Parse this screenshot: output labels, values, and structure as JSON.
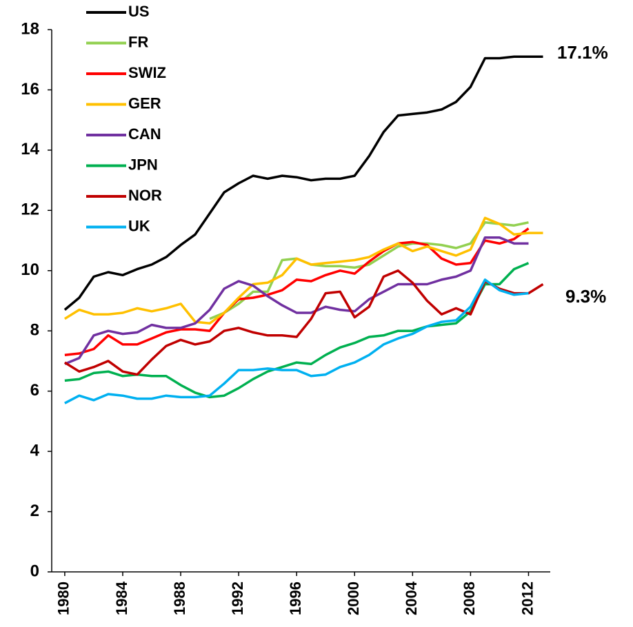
{
  "chart_data": {
    "type": "line",
    "x": [
      1980,
      1981,
      1982,
      1983,
      1984,
      1985,
      1986,
      1987,
      1988,
      1989,
      1990,
      1991,
      1992,
      1993,
      1994,
      1995,
      1996,
      1997,
      1998,
      1999,
      2000,
      2001,
      2002,
      2003,
      2004,
      2005,
      2006,
      2007,
      2008,
      2009,
      2010,
      2011,
      2012,
      2013
    ],
    "xlim": [
      1979.1,
      2013.5
    ],
    "xticks": [
      1980,
      1984,
      1988,
      1992,
      1996,
      2000,
      2004,
      2008,
      2012
    ],
    "ylim": [
      0,
      18
    ],
    "yticks": [
      0,
      2,
      4,
      6,
      8,
      10,
      12,
      14,
      16,
      18
    ],
    "legend": "top-left",
    "series": [
      {
        "name": "US",
        "color": "#000000",
        "values": [
          8.7,
          9.1,
          9.8,
          9.95,
          9.85,
          10.05,
          10.2,
          10.45,
          10.85,
          11.2,
          11.9,
          12.6,
          12.9,
          13.15,
          13.05,
          13.15,
          13.1,
          13.0,
          13.05,
          13.05,
          13.15,
          13.8,
          14.6,
          15.15,
          15.2,
          15.25,
          15.35,
          15.6,
          16.1,
          17.05,
          17.05,
          17.1,
          17.1,
          17.1
        ]
      },
      {
        "name": "FR",
        "color": "#92d050",
        "values": [
          null,
          null,
          null,
          null,
          null,
          null,
          null,
          null,
          null,
          null,
          8.4,
          8.6,
          8.9,
          9.3,
          9.3,
          10.35,
          10.4,
          10.2,
          10.15,
          10.15,
          10.1,
          10.2,
          10.5,
          10.8,
          10.9,
          10.9,
          10.85,
          10.75,
          10.9,
          11.6,
          11.55,
          11.5,
          11.6,
          null
        ]
      },
      {
        "name": "SWIZ",
        "color": "#ff0000",
        "values": [
          7.2,
          7.25,
          7.4,
          7.85,
          7.55,
          7.55,
          7.75,
          7.95,
          8.05,
          8.05,
          8.0,
          8.6,
          9.05,
          9.1,
          9.2,
          9.35,
          9.7,
          9.65,
          9.85,
          10.0,
          9.9,
          10.3,
          10.65,
          10.9,
          10.95,
          10.85,
          10.4,
          10.2,
          10.25,
          11.0,
          10.9,
          11.05,
          11.4,
          null
        ]
      },
      {
        "name": "GER",
        "color": "#ffc000",
        "values": [
          8.4,
          8.7,
          8.55,
          8.55,
          8.6,
          8.75,
          8.65,
          8.75,
          8.9,
          8.3,
          8.25,
          8.6,
          9.1,
          9.55,
          9.6,
          9.85,
          10.4,
          10.2,
          10.25,
          10.3,
          10.35,
          10.45,
          10.7,
          10.9,
          10.65,
          10.8,
          10.65,
          10.5,
          10.7,
          11.75,
          11.55,
          11.2,
          11.25,
          11.25
        ]
      },
      {
        "name": "CAN",
        "color": "#7030a0",
        "values": [
          6.9,
          7.1,
          7.85,
          8.0,
          7.9,
          7.95,
          8.2,
          8.1,
          8.1,
          8.25,
          8.7,
          9.4,
          9.65,
          9.5,
          9.15,
          8.85,
          8.6,
          8.6,
          8.8,
          8.7,
          8.65,
          9.05,
          9.3,
          9.55,
          9.55,
          9.55,
          9.7,
          9.8,
          10.0,
          11.1,
          11.1,
          10.9,
          10.9,
          null
        ]
      },
      {
        "name": "JPN",
        "color": "#00b050",
        "values": [
          6.35,
          6.4,
          6.6,
          6.65,
          6.5,
          6.55,
          6.5,
          6.5,
          6.2,
          5.95,
          5.8,
          5.85,
          6.1,
          6.4,
          6.65,
          6.8,
          6.95,
          6.9,
          7.2,
          7.45,
          7.6,
          7.8,
          7.85,
          8.0,
          8.0,
          8.15,
          8.2,
          8.25,
          8.65,
          9.55,
          9.55,
          10.05,
          10.25,
          null
        ]
      },
      {
        "name": "NOR",
        "color": "#c00000",
        "values": [
          6.95,
          6.65,
          6.8,
          7.0,
          6.65,
          6.55,
          7.05,
          7.5,
          7.7,
          7.55,
          7.65,
          8.0,
          8.1,
          7.95,
          7.85,
          7.85,
          7.8,
          8.4,
          9.25,
          9.3,
          8.45,
          8.8,
          9.8,
          10.0,
          9.6,
          9.0,
          8.55,
          8.75,
          8.55,
          9.65,
          9.4,
          9.25,
          9.25,
          9.55
        ]
      },
      {
        "name": "UK",
        "color": "#00b0f0",
        "values": [
          5.6,
          5.85,
          5.7,
          5.9,
          5.85,
          5.75,
          5.75,
          5.85,
          5.8,
          5.8,
          5.85,
          6.25,
          6.7,
          6.7,
          6.75,
          6.7,
          6.7,
          6.5,
          6.55,
          6.8,
          6.95,
          7.2,
          7.55,
          7.75,
          7.9,
          8.15,
          8.3,
          8.35,
          8.8,
          9.7,
          9.35,
          9.2,
          9.25,
          null
        ]
      }
    ],
    "annotations": [
      "17.1%",
      "9.3%"
    ]
  }
}
